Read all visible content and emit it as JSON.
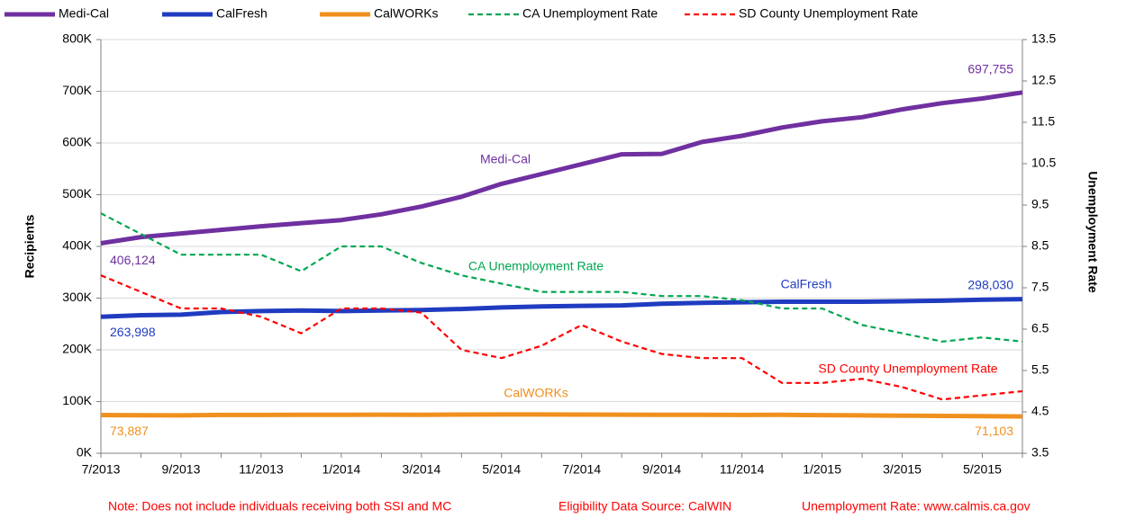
{
  "chart_data": {
    "type": "line",
    "categories": [
      "7/2013",
      null,
      "9/2013",
      null,
      "11/2013",
      null,
      "1/2014",
      null,
      "3/2014",
      null,
      "5/2014",
      null,
      "7/2014",
      null,
      "9/2014",
      null,
      "11/2014",
      null,
      "1/2015",
      null,
      "3/2015",
      null,
      "5/2015",
      null
    ],
    "series": [
      {
        "name": "Medi-Cal",
        "color": "#7030a0",
        "dash": false,
        "values": [
          406124,
          418000,
          425000,
          432000,
          439000,
          445000,
          451000,
          462000,
          477000,
          496000,
          521000,
          540000,
          559000,
          578000,
          579000,
          602000,
          614000,
          630000,
          642000,
          650000,
          665000,
          677000,
          686000,
          697755
        ],
        "value_labels": [
          "406,124",
          null,
          null,
          null,
          null,
          null,
          null,
          null,
          null,
          null,
          null,
          null,
          null,
          null,
          null,
          null,
          null,
          null,
          null,
          null,
          null,
          null,
          null,
          "697,755"
        ]
      },
      {
        "name": "CalFresh",
        "color": "#1f3cc0",
        "dash": false,
        "values": [
          263998,
          267000,
          268000,
          273000,
          275000,
          276000,
          275000,
          276000,
          277000,
          279000,
          282000,
          284000,
          285000,
          286000,
          289000,
          291000,
          292000,
          293000,
          293000,
          293000,
          294000,
          295000,
          297000,
          298030
        ],
        "value_labels": [
          "263,998",
          null,
          null,
          null,
          null,
          null,
          null,
          null,
          null,
          null,
          null,
          null,
          null,
          null,
          null,
          null,
          null,
          null,
          null,
          null,
          null,
          null,
          null,
          "298,030"
        ]
      },
      {
        "name": "CalWORKs",
        "color": "#f0901e",
        "dash": false,
        "values": [
          73887,
          73500,
          73300,
          74000,
          74000,
          74200,
          74500,
          74600,
          74500,
          74800,
          75000,
          75000,
          74800,
          74600,
          74500,
          74300,
          74000,
          74200,
          73800,
          73200,
          72700,
          72200,
          71700,
          71103
        ],
        "value_labels": [
          "73,887",
          null,
          null,
          null,
          null,
          null,
          null,
          null,
          null,
          null,
          null,
          null,
          null,
          null,
          null,
          null,
          null,
          null,
          null,
          null,
          null,
          null,
          null,
          "71,103"
        ]
      },
      {
        "name": "CA Unemployment Rate",
        "color": "#00a650",
        "dash": true,
        "axis": "y2",
        "values": [
          9.3,
          8.8,
          8.3,
          8.3,
          8.3,
          7.9,
          8.5,
          8.5,
          8.1,
          7.8,
          7.6,
          7.4,
          7.4,
          7.4,
          7.3,
          7.3,
          7.2,
          7.0,
          7.0,
          6.6,
          6.4,
          6.2,
          6.3,
          6.2
        ]
      },
      {
        "name": "SD County Unemployment Rate",
        "color": "#ff0000",
        "dash": true,
        "axis": "y2",
        "values": [
          7.8,
          7.4,
          7.0,
          7.0,
          6.8,
          6.4,
          7.0,
          7.0,
          6.9,
          6.0,
          5.8,
          6.1,
          6.6,
          6.2,
          5.9,
          5.8,
          5.8,
          5.2,
          5.2,
          5.3,
          5.1,
          4.8,
          4.9,
          5.0
        ]
      }
    ],
    "ylabel": "Recipients",
    "y2label": "Unemployment Rate",
    "ylim": [
      0,
      800000
    ],
    "yticks": [
      {
        "value": 0,
        "label": "0K"
      },
      {
        "value": 100000,
        "label": "100K"
      },
      {
        "value": 200000,
        "label": "200K"
      },
      {
        "value": 300000,
        "label": "300K"
      },
      {
        "value": 400000,
        "label": "400K"
      },
      {
        "value": 500000,
        "label": "500K"
      },
      {
        "value": 600000,
        "label": "600K"
      },
      {
        "value": 700000,
        "label": "700K"
      },
      {
        "value": 800000,
        "label": "800K"
      }
    ],
    "y2lim": [
      3.5,
      13.5
    ],
    "y2ticks": [
      3.5,
      4.5,
      5.5,
      6.5,
      7.5,
      8.5,
      9.5,
      10.5,
      11.5,
      12.5,
      13.5
    ],
    "grid": true,
    "legend": "top",
    "notes": [
      "Note: Does not include individuals receiving both SSI and MC",
      "Eligibility Data Source: CalWIN",
      "Unemployment Rate: www.calmis.ca.gov"
    ]
  }
}
